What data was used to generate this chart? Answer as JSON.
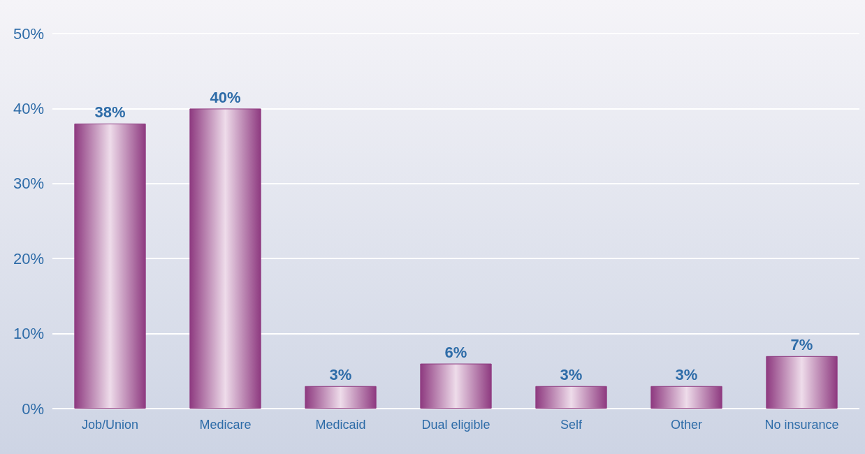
{
  "chart_data": {
    "type": "bar",
    "categories": [
      "Job/Union",
      "Medicare",
      "Medicaid",
      "Dual eligible",
      "Self",
      "Other",
      "No insurance"
    ],
    "values": [
      38,
      40,
      3,
      6,
      3,
      3,
      7
    ],
    "value_labels": [
      "38%",
      "40%",
      "3%",
      "6%",
      "3%",
      "3%",
      "7%"
    ],
    "color": "#8e3a80",
    "ylim": [
      0,
      50
    ],
    "yticks": [
      {
        "value": 0,
        "label": "0%"
      },
      {
        "value": 10,
        "label": "10%"
      },
      {
        "value": 20,
        "label": "20%"
      },
      {
        "value": 30,
        "label": "30%"
      },
      {
        "value": 40,
        "label": "40%"
      },
      {
        "value": 50,
        "label": "50%"
      }
    ],
    "grid": "y"
  }
}
